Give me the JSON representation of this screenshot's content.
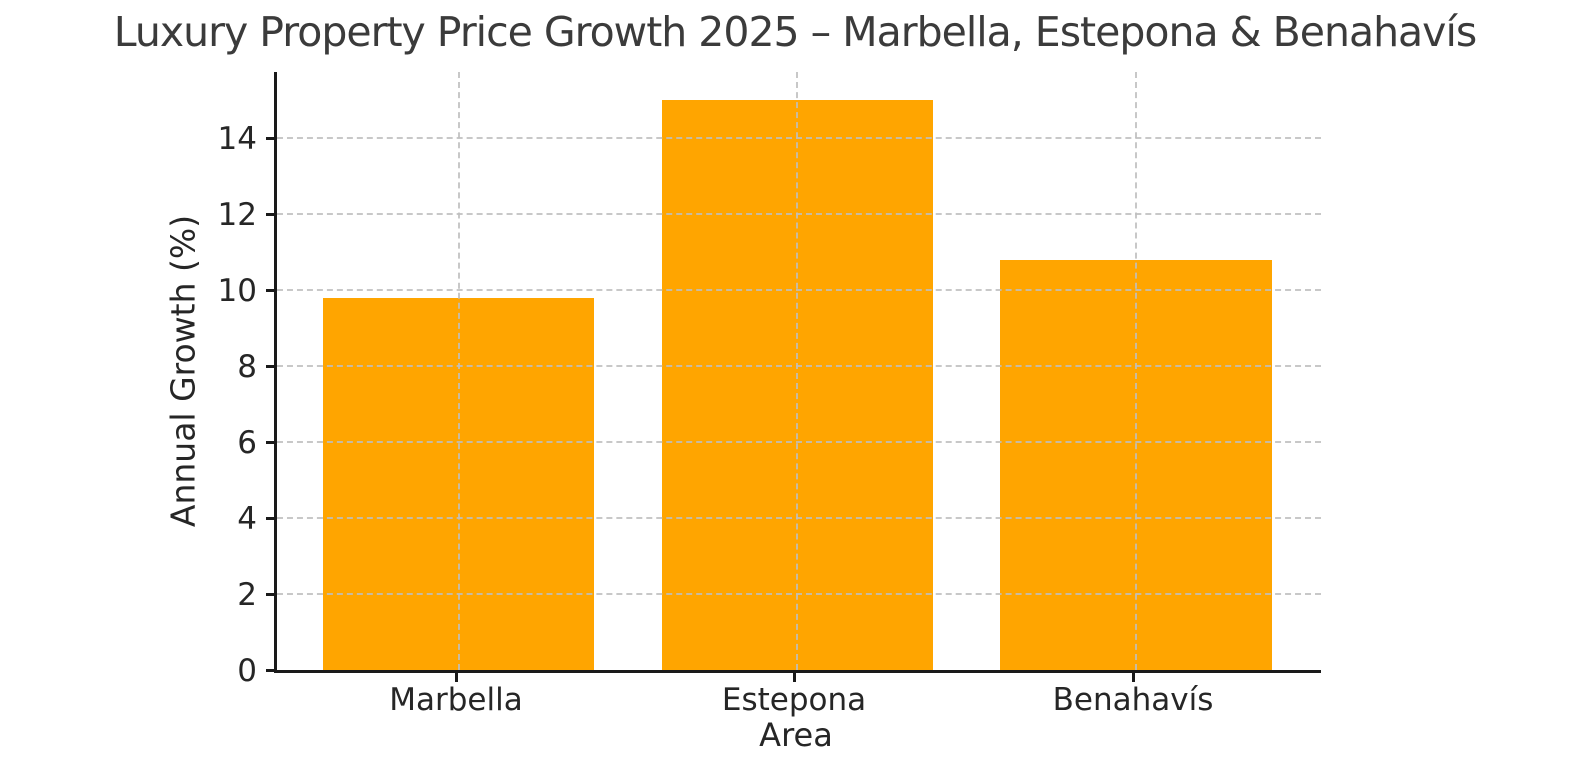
{
  "chart_data": {
    "type": "bar",
    "title": "Luxury Property Price Growth 2025 – Marbella, Estepona & Benahavís",
    "xlabel": "Area",
    "ylabel": "Annual Growth (%)",
    "categories": [
      "Marbella",
      "Estepona",
      "Benahavís"
    ],
    "values": [
      9.8,
      15.0,
      10.8
    ],
    "ylim": [
      0,
      15.74
    ],
    "yticks": [
      0,
      2,
      4,
      6,
      8,
      10,
      12,
      14
    ],
    "grid": "dashed, both axes, drawn above bars",
    "legend_position": "none",
    "bar_color": "#FFA500"
  },
  "colors": {
    "background": "#ffffff",
    "bar": "#FFA500",
    "grid": "#c9c9c9",
    "axis": "#1a1a1a",
    "title_text": "#3b3b3b",
    "tick_text": "#262626"
  }
}
